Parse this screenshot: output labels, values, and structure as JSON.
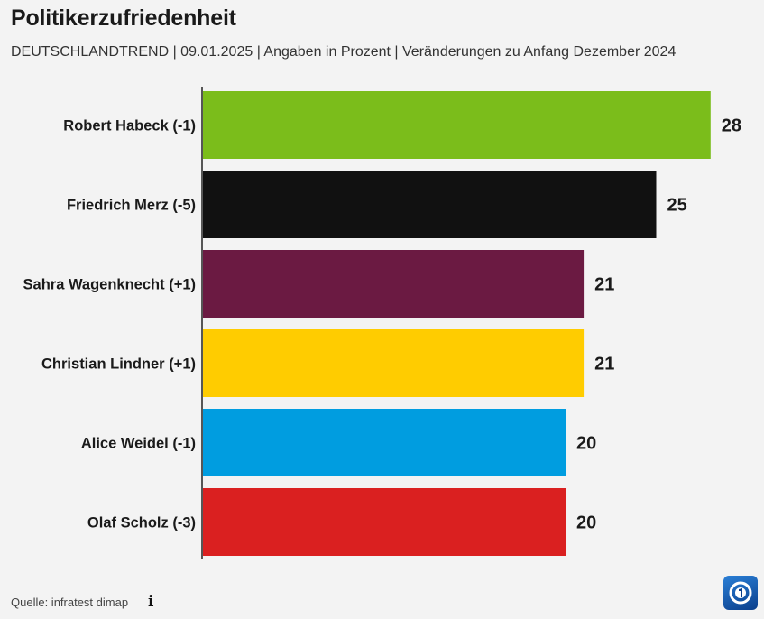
{
  "title": "Politikerzufriedenheit",
  "subtitle": "DEUTSCHLANDTREND | 09.01.2025 | Angaben in Prozent | Veränderungen zu Anfang Dezember 2024",
  "source": "Quelle: infratest dimap",
  "info_icon": "info-icon",
  "logo_icon": "tagesschau-logo-icon",
  "chart_data": {
    "type": "bar",
    "orientation": "horizontal",
    "categories": [
      "Robert Habeck (-1)",
      "Friedrich Merz (-5)",
      "Sahra Wagenknecht (+1)",
      "Christian Lindner (+1)",
      "Alice Weidel (-1)",
      "Olaf Scholz (-3)"
    ],
    "values": [
      28,
      25,
      21,
      21,
      20,
      20
    ],
    "colors": [
      "#7bbd1b",
      "#111111",
      "#6b1a42",
      "#ffcc00",
      "#009de0",
      "#da2020"
    ],
    "title": "Politikerzufriedenheit",
    "subtitle": "DEUTSCHLANDTREND | 09.01.2025 | Angaben in Prozent | Veränderungen zu Anfang Dezember 2024",
    "xlabel": "",
    "ylabel": "",
    "xlim": [
      0,
      30
    ],
    "grid": false,
    "data_labels": true
  }
}
